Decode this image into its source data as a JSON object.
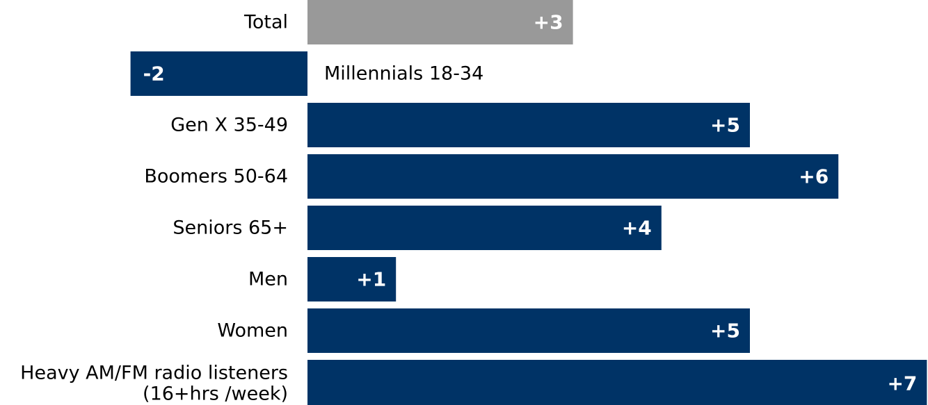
{
  "chart_data": {
    "type": "bar",
    "orientation": "horizontal",
    "categories": [
      [
        "Total"
      ],
      [
        "Millennials 18-34"
      ],
      [
        "Gen X 35-49"
      ],
      [
        "Boomers 50-64"
      ],
      [
        "Seniors 65+"
      ],
      [
        "Men"
      ],
      [
        "Women"
      ],
      [
        "Heavy AM/FM radio listeners",
        "(16+hrs /week)"
      ]
    ],
    "values": [
      3,
      -2,
      5,
      6,
      4,
      1,
      5,
      7
    ],
    "value_labels": [
      "+3",
      "-2",
      "+5",
      "+6",
      "+4",
      "+1",
      "+5",
      "+7"
    ],
    "bar_colors": [
      "#999999",
      "#003366",
      "#003366",
      "#003366",
      "#003366",
      "#003366",
      "#003366",
      "#003366"
    ],
    "title": "",
    "xlabel": "",
    "ylabel": "",
    "xlim": [
      -2.0,
      7.0
    ],
    "grid": false,
    "legend": false
  }
}
